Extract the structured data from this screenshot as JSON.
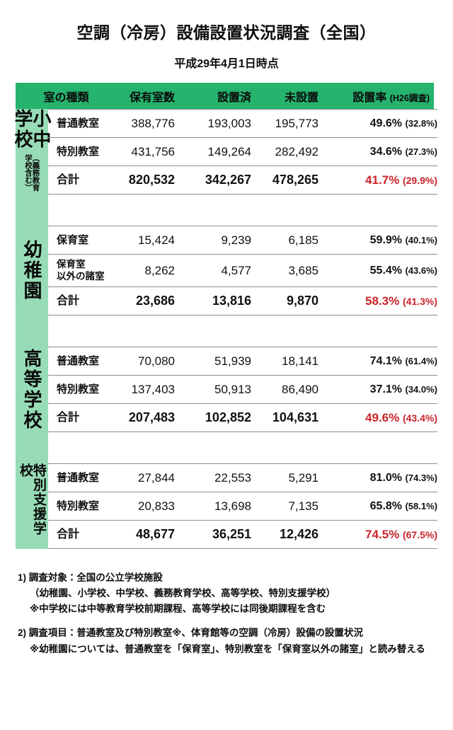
{
  "title": "空調（冷房）設備設置状況調査（全国）",
  "subtitle": "平成29年4月1日時点",
  "colors": {
    "header_green": "#26b36e",
    "sidebar_green": "#97dcb6",
    "total_red": "#c9252c",
    "line_gray": "#8d8d8d"
  },
  "table": {
    "headers": {
      "room_type": "室の種類",
      "owned": "保有室数",
      "installed": "設置済",
      "not_installed": "未設置",
      "rate": "設置率",
      "rate_note": "(H26調査)"
    },
    "groups": [
      {
        "name": "小中学校",
        "name_sub": "（義務教育学校含む）",
        "compact": false,
        "rows": [
          {
            "label_lines": [
              "普通教室"
            ],
            "owned": "388,776",
            "installed": "193,003",
            "not_installed": "195,773",
            "rate": "49.6%",
            "rate_h26": "(32.8%)",
            "total": false
          },
          {
            "label_lines": [
              "特別教室"
            ],
            "owned": "431,756",
            "installed": "149,264",
            "not_installed": "282,492",
            "rate": "34.6%",
            "rate_h26": "(27.3%)",
            "total": false
          },
          {
            "label_lines": [
              "合計"
            ],
            "owned": "820,532",
            "installed": "342,267",
            "not_installed": "478,265",
            "rate": "41.7%",
            "rate_h26": "(29.9%)",
            "total": true
          }
        ]
      },
      {
        "name": "幼稚園",
        "name_sub": "",
        "compact": false,
        "rows": [
          {
            "label_lines": [
              "保育室"
            ],
            "owned": "15,424",
            "installed": "9,239",
            "not_installed": "6,185",
            "rate": "59.9%",
            "rate_h26": "(40.1%)",
            "total": false
          },
          {
            "label_lines": [
              "保育室",
              "以外の諸室"
            ],
            "owned": "8,262",
            "installed": "4,577",
            "not_installed": "3,685",
            "rate": "55.4%",
            "rate_h26": "(43.6%)",
            "total": false
          },
          {
            "label_lines": [
              "合計"
            ],
            "owned": "23,686",
            "installed": "13,816",
            "not_installed": "9,870",
            "rate": "58.3%",
            "rate_h26": "(41.3%)",
            "total": true
          }
        ]
      },
      {
        "name": "高等学校",
        "name_sub": "",
        "compact": false,
        "rows": [
          {
            "label_lines": [
              "普通教室"
            ],
            "owned": "70,080",
            "installed": "51,939",
            "not_installed": "18,141",
            "rate": "74.1%",
            "rate_h26": "(61.4%)",
            "total": false
          },
          {
            "label_lines": [
              "特別教室"
            ],
            "owned": "137,403",
            "installed": "50,913",
            "not_installed": "86,490",
            "rate": "37.1%",
            "rate_h26": "(34.0%)",
            "total": false
          },
          {
            "label_lines": [
              "合計"
            ],
            "owned": "207,483",
            "installed": "102,852",
            "not_installed": "104,631",
            "rate": "49.6%",
            "rate_h26": "(43.4%)",
            "total": true
          }
        ]
      },
      {
        "name": "特別支援学校",
        "name_sub": "",
        "compact": true,
        "rows": [
          {
            "label_lines": [
              "普通教室"
            ],
            "owned": "27,844",
            "installed": "22,553",
            "not_installed": "5,291",
            "rate": "81.0%",
            "rate_h26": "(74.3%)",
            "total": false
          },
          {
            "label_lines": [
              "特別教室"
            ],
            "owned": "20,833",
            "installed": "13,698",
            "not_installed": "7,135",
            "rate": "65.8%",
            "rate_h26": "(58.1%)",
            "total": false
          },
          {
            "label_lines": [
              "合計"
            ],
            "owned": "48,677",
            "installed": "36,251",
            "not_installed": "12,426",
            "rate": "74.5%",
            "rate_h26": "(67.5%)",
            "total": true
          }
        ]
      }
    ]
  },
  "footnotes": [
    {
      "first_line": "1) 調査対象：全国の公立学校施設",
      "sub_lines": [
        "（幼稚園、小学校、中学校、義務教育学校、高等学校、特別支援学校）",
        "※中学校には中等教育学校前期課程、高等学校には同後期課程を含む"
      ]
    },
    {
      "first_line": "2) 調査項目：普通教室及び特別教室※、体育館等の空調（冷房）設備の設置状況",
      "sub_lines": [
        "※幼稚園については、普通教室を「保育室」、特別教室を「保育室以外の諸室」と読み替える"
      ]
    }
  ]
}
